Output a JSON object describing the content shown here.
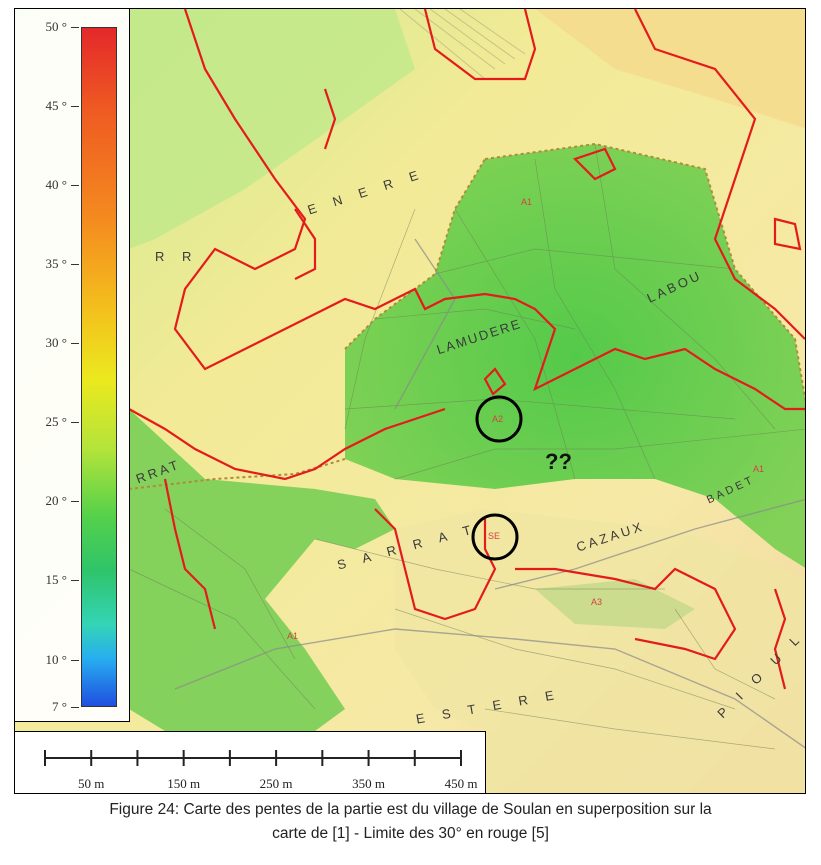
{
  "legend": {
    "title": "",
    "ticks": [
      "50 °",
      "45 °",
      "40 °",
      "35 °",
      "30 °",
      "25 °",
      "20 °",
      "15 °",
      "10 °",
      "7 °"
    ],
    "tick_values": [
      50,
      45,
      40,
      35,
      30,
      25,
      20,
      15,
      10,
      7
    ],
    "color_low": "#1f4fe0",
    "color_high": "#e4282a"
  },
  "scale_bar": {
    "labels": [
      "50 m",
      "150 m",
      "250 m",
      "350 m",
      "450 m"
    ]
  },
  "map_labels": {
    "rrenere_1": "R R",
    "rrenere_2": "E N E R E",
    "lamudere": "LAMUDERE",
    "cazaux": "CAZAUX",
    "badet": "BADET",
    "labour": "LABOU",
    "sarrat": "S A R R A T",
    "sarrat_left": "RRAT",
    "estere": "E S T E R E",
    "pioulet": "P I O U L E T",
    "a1_top": "A1",
    "a1_left": "A1",
    "a1_right": "A1",
    "a1_far_left": "A1",
    "a2": "A2",
    "a3": "A3",
    "se": "SE",
    "question": "??"
  },
  "colors": {
    "limit_line": "#e41b1b",
    "marker_ring": "#000000"
  },
  "caption": {
    "line1": "Figure 24: Carte des pentes de la partie est du village de Soulan en superposition sur la",
    "line2": "carte de [1] - Limite des 30° en rouge [5]"
  }
}
